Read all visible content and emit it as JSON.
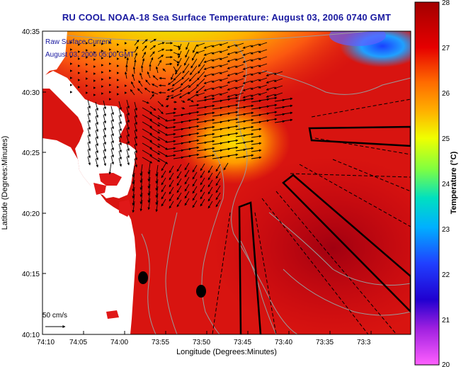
{
  "title": "RU COOL  NOAA-18  Sea Surface Temperature:  August 03, 2006 0740 GMT",
  "inset": {
    "line1": "Raw Surface Current",
    "line2": "August 03, 2006 05:00 GMT"
  },
  "scale_label": "50 cm/s",
  "axes": {
    "xlabel": "Longitude (Degrees:Minutes)",
    "ylabel": "Latitude (Degrees:Minutes)",
    "x_ticks": [
      "74:10",
      "74:05",
      "74:00",
      "73:55",
      "73:50",
      "73:45",
      "73:40",
      "73:35",
      "73:3"
    ],
    "y_ticks": [
      "40:35",
      "40:30",
      "40:25",
      "40:20",
      "40:15",
      "40:10"
    ]
  },
  "colorbar": {
    "label": "Temperature (°C)",
    "ticks": [
      "28",
      "27",
      "26",
      "25",
      "24",
      "23",
      "22",
      "21",
      "20"
    ],
    "range": [
      20,
      28
    ]
  },
  "colors": {
    "title": "#1a1aa0",
    "land": "#ffffff",
    "warm": "#cc1010",
    "cool": "#2a4cff"
  }
}
